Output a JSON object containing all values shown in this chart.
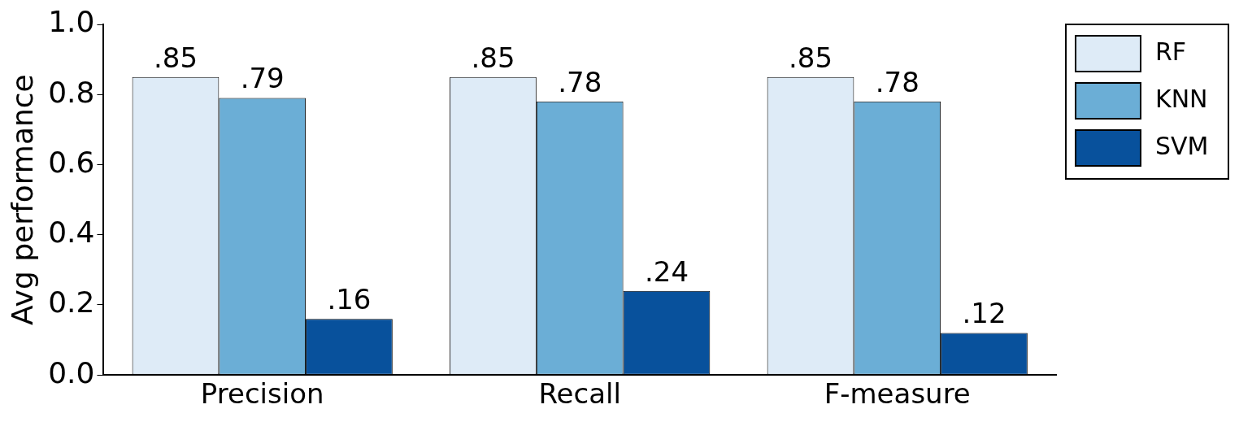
{
  "chart_data": {
    "type": "bar",
    "ylabel": "Avg performance",
    "categories": [
      "Precision",
      "Recall",
      "F-measure"
    ],
    "series": [
      {
        "name": "RF",
        "color": "#deebf7",
        "values": [
          0.85,
          0.85,
          0.85
        ],
        "value_labels": [
          ".85",
          ".85",
          ".85"
        ]
      },
      {
        "name": "KNN",
        "color": "#6baed6",
        "values": [
          0.79,
          0.78,
          0.78
        ],
        "value_labels": [
          ".79",
          ".78",
          ".78"
        ]
      },
      {
        "name": "SVM",
        "color": "#08519c",
        "values": [
          0.16,
          0.24,
          0.12
        ],
        "value_labels": [
          ".16",
          ".24",
          ".12"
        ]
      }
    ],
    "ylim": [
      0,
      1
    ],
    "yticks": [
      {
        "value": 0,
        "label": "0.0"
      },
      {
        "value": 0.2,
        "label": "0.2"
      },
      {
        "value": 0.4,
        "label": "0.4"
      },
      {
        "value": 0.6,
        "label": "0.6"
      },
      {
        "value": 0.8,
        "label": "0.8"
      },
      {
        "value": 1,
        "label": "1.0"
      }
    ],
    "grid": false,
    "legend": "right"
  }
}
